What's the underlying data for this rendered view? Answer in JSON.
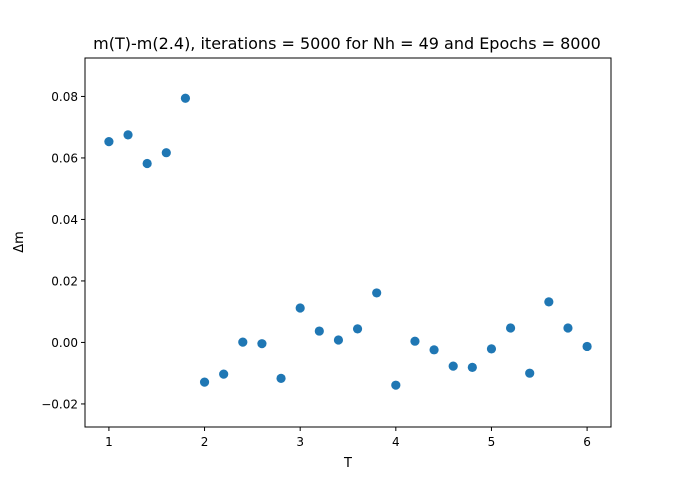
{
  "chart_data": {
    "type": "scatter",
    "title": "m(T)-m(2.4), iterations = 5000 for Nh = 49 and Epochs = 8000",
    "xlabel": "T",
    "ylabel": "Δm",
    "xlim": [
      0.75,
      6.25
    ],
    "ylim": [
      -0.0275,
      0.0925
    ],
    "xticks": [
      1,
      2,
      3,
      4,
      5,
      6
    ],
    "xtick_labels": [
      "1",
      "2",
      "3",
      "4",
      "5",
      "6"
    ],
    "yticks": [
      -0.02,
      0.0,
      0.02,
      0.04,
      0.06,
      0.08
    ],
    "ytick_labels": [
      "−0.02",
      "0.00",
      "0.02",
      "0.04",
      "0.06",
      "0.08"
    ],
    "grid": false,
    "color": "#1f77b4",
    "x": [
      1.0,
      1.2,
      1.4,
      1.6,
      1.8,
      2.0,
      2.2,
      2.4,
      2.6,
      2.8,
      3.0,
      3.2,
      3.4,
      3.6,
      3.8,
      4.0,
      4.2,
      4.4,
      4.6,
      4.8,
      5.0,
      5.2,
      5.4,
      5.6,
      5.8,
      6.0
    ],
    "y": [
      0.0653,
      0.0675,
      0.0582,
      0.0617,
      0.0794,
      -0.0129,
      -0.0103,
      0.0001,
      -0.0004,
      -0.0117,
      0.0112,
      0.0037,
      0.0008,
      0.0044,
      0.0161,
      -0.0139,
      0.0004,
      -0.0024,
      -0.0077,
      -0.0081,
      -0.0021,
      0.0047,
      -0.01,
      0.0132,
      0.0047,
      -0.0013
    ]
  }
}
